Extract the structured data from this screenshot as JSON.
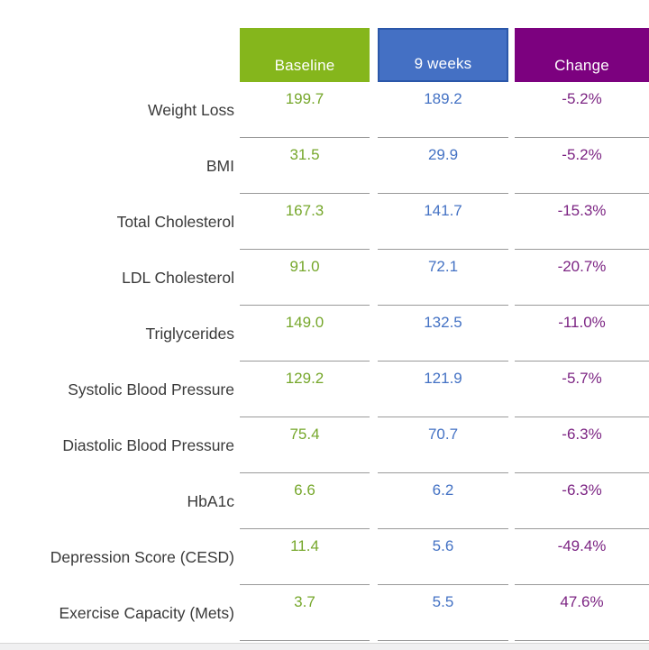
{
  "table": {
    "headers": [
      {
        "label": "Baseline",
        "bg_color": "#85b61c",
        "value_color": "#76a72b"
      },
      {
        "label": "9 weeks",
        "bg_color": "#4470c4",
        "border_color": "#2b57a9",
        "value_color": "#4472c4"
      },
      {
        "label": "Change",
        "bg_color": "#7c017f",
        "value_color": "#7c2483"
      }
    ],
    "rows": [
      {
        "label": "Weight Loss",
        "baseline": "199.7",
        "nine_weeks": "189.2",
        "change": "-5.2%"
      },
      {
        "label": "BMI",
        "baseline": "31.5",
        "nine_weeks": "29.9",
        "change": "-5.2%"
      },
      {
        "label": "Total Cholesterol",
        "baseline": "167.3",
        "nine_weeks": "141.7",
        "change": "-15.3%"
      },
      {
        "label": "LDL Cholesterol",
        "baseline": "91.0",
        "nine_weeks": "72.1",
        "change": "-20.7%"
      },
      {
        "label": "Triglycerides",
        "baseline": "149.0",
        "nine_weeks": "132.5",
        "change": "-11.0%"
      },
      {
        "label": "Systolic Blood Pressure",
        "baseline": "129.2",
        "nine_weeks": "121.9",
        "change": "-5.7%"
      },
      {
        "label": "Diastolic Blood Pressure",
        "baseline": "75.4",
        "nine_weeks": "70.7",
        "change": "-6.3%"
      },
      {
        "label": "HbA1c",
        "baseline": "6.6",
        "nine_weeks": "6.2",
        "change": "-6.3%"
      },
      {
        "label": "Depression Score (CESD)",
        "baseline": "11.4",
        "nine_weeks": "5.6",
        "change": "-49.4%"
      },
      {
        "label": "Exercise Capacity (Mets)",
        "baseline": "3.7",
        "nine_weeks": "5.5",
        "change": "47.6%"
      }
    ]
  },
  "chart_data": {
    "type": "table",
    "title": "",
    "categories": [
      "Weight Loss",
      "BMI",
      "Total Cholesterol",
      "LDL Cholesterol",
      "Triglycerides",
      "Systolic Blood Pressure",
      "Diastolic Blood Pressure",
      "HbA1c",
      "Depression Score (CESD)",
      "Exercise Capacity (Mets)"
    ],
    "series": [
      {
        "name": "Baseline",
        "values": [
          199.7,
          31.5,
          167.3,
          91.0,
          149.0,
          129.2,
          75.4,
          6.6,
          11.4,
          3.7
        ]
      },
      {
        "name": "9 weeks",
        "values": [
          189.2,
          29.9,
          141.7,
          72.1,
          132.5,
          121.9,
          70.7,
          6.2,
          5.6,
          5.5
        ]
      },
      {
        "name": "Change",
        "values": [
          "-5.2%",
          "-5.2%",
          "-15.3%",
          "-20.7%",
          "-11.0%",
          "-5.7%",
          "-6.3%",
          "-6.3%",
          "-49.4%",
          "47.6%"
        ]
      }
    ],
    "layout": {
      "header_colors": [
        "#85b61c",
        "#4470c4",
        "#7c017f"
      ],
      "gridlines": "horizontal-only"
    }
  }
}
